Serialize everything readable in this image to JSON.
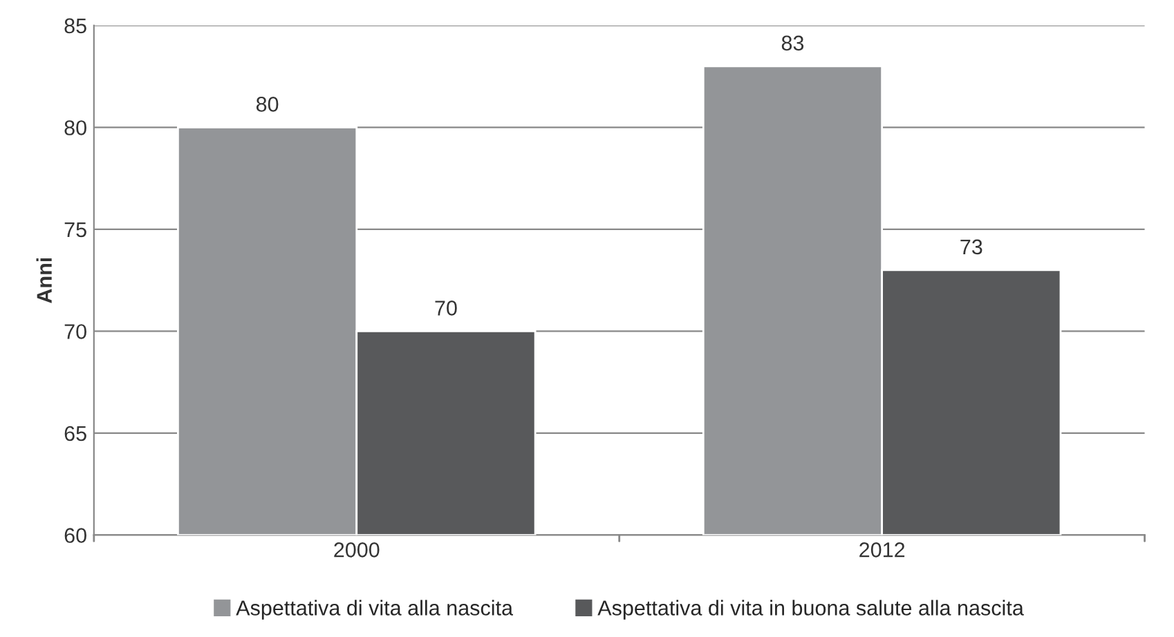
{
  "chart_data": {
    "type": "bar",
    "ylabel": "Anni",
    "categories": [
      "2000",
      "2012"
    ],
    "series": [
      {
        "name": "Aspettativa di vita alla nascita",
        "color": "#939598",
        "values": [
          80,
          83
        ]
      },
      {
        "name": "Aspettativa di vita in buona salute alla nascita",
        "color": "#58595b",
        "values": [
          70,
          73
        ]
      }
    ],
    "ylim": [
      60,
      85
    ],
    "yticks": [
      60,
      65,
      70,
      75,
      80,
      85
    ],
    "grid": "y",
    "legend": "bottom",
    "data_labels": true
  }
}
